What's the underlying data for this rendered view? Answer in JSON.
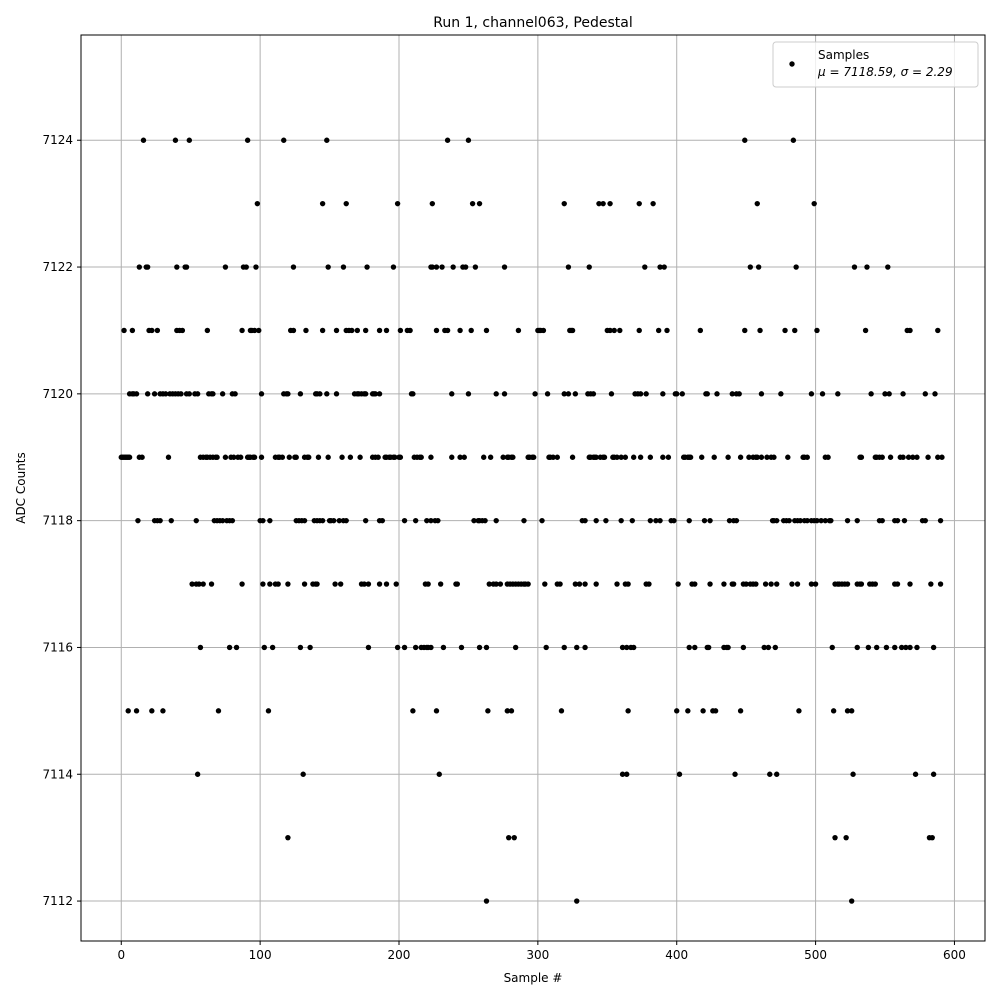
{
  "chart_data": {
    "type": "scatter",
    "title": "Run 1, channel063, Pedestal",
    "xlabel": "Sample #",
    "ylabel": "ADC Counts",
    "xlim": [
      -29,
      622
    ],
    "ylim": [
      7111.37,
      7125.66
    ],
    "xticks": [
      0,
      100,
      200,
      300,
      400,
      500,
      600
    ],
    "yticks": [
      7112,
      7114,
      7116,
      7118,
      7120,
      7122,
      7124
    ],
    "grid": true,
    "legend": {
      "placement": "top-right",
      "series_name": "Samples",
      "stats_label": "μ = 7118.59, σ = 2.29"
    },
    "marker_color": "#000000",
    "grid_color": "#b0b0b0",
    "series": [
      {
        "name": "Samples",
        "points_by_value": [
          {
            "y": 7124,
            "x": [
              16,
              39,
              49,
              91,
              117,
              148,
              235,
              250,
              449,
              484
            ]
          },
          {
            "y": 7123,
            "x": [
              98,
              145,
              162,
              199,
              224,
              253,
              258,
              319,
              344,
              347,
              352,
              373,
              383,
              458,
              499
            ]
          },
          {
            "y": 7122,
            "x": [
              13,
              18,
              19,
              40,
              46,
              47,
              75,
              88,
              90,
              97,
              124,
              149,
              160,
              177,
              196,
              223,
              224,
              227,
              231,
              239,
              246,
              248,
              255,
              276,
              322,
              337,
              377,
              388,
              391,
              453,
              459,
              486,
              528,
              537,
              552
            ]
          },
          {
            "y": 7121,
            "x": [
              2,
              8,
              20,
              22,
              26,
              40,
              42,
              44,
              62,
              87,
              93,
              94,
              96,
              99,
              122,
              124,
              133,
              145,
              155,
              162,
              164,
              166,
              170,
              176,
              186,
              191,
              201,
              206,
              208,
              227,
              233,
              235,
              244,
              252,
              263,
              286,
              300,
              301,
              302,
              304,
              323,
              324,
              325,
              350,
              352,
              355,
              359,
              373,
              387,
              393,
              417,
              449,
              460,
              478,
              485,
              501,
              536,
              566,
              568,
              588
            ]
          },
          {
            "y": 7120,
            "x": [
              6,
              8,
              9,
              11,
              19,
              24,
              28,
              30,
              32,
              35,
              37,
              39,
              41,
              43,
              47,
              49,
              53,
              55,
              63,
              65,
              66,
              73,
              80,
              82,
              101,
              117,
              119,
              120,
              129,
              140,
              141,
              143,
              148,
              155,
              168,
              170,
              171,
              173,
              175,
              176,
              181,
              182,
              183,
              186,
              209,
              210,
              238,
              250,
              270,
              276,
              298,
              307,
              319,
              322,
              327,
              336,
              338,
              340,
              353,
              370,
              372,
              374,
              378,
              390,
              399,
              400,
              404,
              421,
              422,
              429,
              440,
              443,
              445,
              461,
              475,
              497,
              505,
              516,
              540,
              550,
              553,
              563,
              579,
              586
            ]
          },
          {
            "y": 7119,
            "x": [
              0,
              1,
              2,
              3,
              4,
              5,
              6,
              13,
              15,
              34,
              57,
              59,
              61,
              62,
              64,
              66,
              68,
              69,
              75,
              79,
              81,
              84,
              86,
              91,
              92,
              93,
              95,
              96,
              101,
              111,
              113,
              114,
              116,
              121,
              125,
              126,
              132,
              134,
              135,
              142,
              149,
              159,
              165,
              172,
              181,
              183,
              185,
              190,
              191,
              193,
              194,
              196,
              197,
              200,
              201,
              211,
              213,
              215,
              216,
              223,
              238,
              244,
              247,
              261,
              266,
              275,
              278,
              279,
              281,
              282,
              293,
              294,
              296,
              297,
              308,
              309,
              311,
              314,
              325,
              337,
              338,
              340,
              341,
              342,
              345,
              347,
              348,
              354,
              355,
              357,
              360,
              363,
              369,
              374,
              381,
              390,
              394,
              405,
              406,
              408,
              409,
              410,
              418,
              427,
              437,
              446,
              452,
              455,
              457,
              458,
              461,
              465,
              468,
              470,
              480,
              491,
              492,
              494,
              507,
              509,
              532,
              533,
              543,
              544,
              546,
              548,
              554,
              561,
              563,
              567,
              570,
              573,
              581,
              588,
              591
            ]
          },
          {
            "y": 7118,
            "x": [
              12,
              24,
              26,
              28,
              36,
              54,
              67,
              69,
              71,
              73,
              76,
              78,
              80,
              100,
              102,
              107,
              126,
              128,
              130,
              132,
              139,
              141,
              143,
              145,
              150,
              151,
              153,
              157,
              160,
              162,
              176,
              186,
              188,
              204,
              212,
              220,
              223,
              226,
              228,
              254,
              257,
              258,
              260,
              262,
              270,
              290,
              303,
              332,
              334,
              342,
              349,
              360,
              368,
              381,
              385,
              388,
              396,
              398,
              409,
              420,
              424,
              438,
              441,
              443,
              469,
              470,
              472,
              477,
              479,
              481,
              485,
              487,
              489,
              492,
              494,
              497,
              499,
              501,
              504,
              507,
              510,
              511,
              523,
              530,
              546,
              548,
              557,
              559,
              564,
              577,
              579,
              590
            ]
          },
          {
            "y": 7117,
            "x": [
              51,
              54,
              56,
              59,
              65,
              87,
              102,
              107,
              111,
              113,
              120,
              132,
              138,
              140,
              141,
              154,
              158,
              173,
              175,
              178,
              186,
              191,
              198,
              219,
              221,
              230,
              241,
              242,
              265,
              268,
              270,
              273,
              278,
              280,
              282,
              284,
              286,
              288,
              290,
              291,
              293,
              305,
              314,
              316,
              327,
              330,
              334,
              342,
              357,
              363,
              365,
              378,
              380,
              401,
              411,
              413,
              424,
              434,
              440,
              441,
              448,
              450,
              453,
              455,
              457,
              464,
              468,
              472,
              483,
              487,
              497,
              500,
              514,
              516,
              517,
              519,
              521,
              523,
              530,
              532,
              533,
              539,
              541,
              543,
              557,
              559,
              568,
              583,
              590
            ]
          },
          {
            "y": 7116,
            "x": [
              57,
              78,
              83,
              103,
              109,
              129,
              136,
              178,
              199,
              204,
              212,
              216,
              218,
              220,
              221,
              223,
              232,
              245,
              258,
              263,
              284,
              306,
              319,
              328,
              334,
              361,
              364,
              367,
              369,
              409,
              413,
              422,
              423,
              434,
              436,
              437,
              448,
              463,
              466,
              471,
              512,
              530,
              538,
              544,
              551,
              557,
              562,
              565,
              568,
              573,
              585
            ]
          },
          {
            "y": 7115,
            "x": [
              5,
              11,
              22,
              30,
              70,
              106,
              210,
              227,
              264,
              278,
              281,
              317,
              365,
              400,
              408,
              419,
              426,
              428,
              446,
              488,
              513,
              523,
              526
            ]
          },
          {
            "y": 7114,
            "x": [
              55,
              131,
              229,
              361,
              364,
              402,
              442,
              467,
              472,
              527,
              572,
              585
            ]
          },
          {
            "y": 7113,
            "x": [
              120,
              279,
              283,
              514,
              522,
              582,
              584
            ]
          },
          {
            "y": 7112,
            "x": [
              263,
              328,
              526
            ]
          }
        ]
      }
    ]
  }
}
